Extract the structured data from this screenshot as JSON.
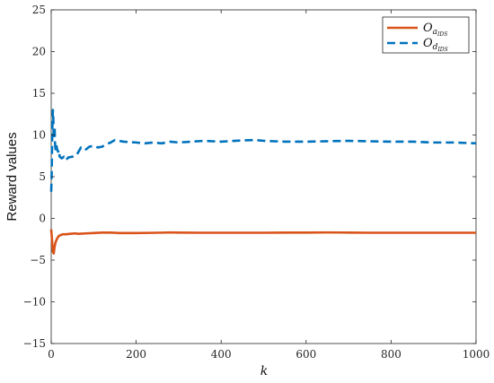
{
  "chart_data": {
    "type": "line",
    "title": "",
    "xlabel": "k",
    "ylabel": "Reward values",
    "xlim": [
      0,
      1000
    ],
    "ylim": [
      -15,
      25
    ],
    "xticks": [
      0,
      200,
      400,
      600,
      800,
      1000
    ],
    "yticks": [
      -15,
      -10,
      -5,
      0,
      5,
      10,
      15,
      20,
      25
    ],
    "ytick_labels": [
      "−15",
      "−10",
      "−5",
      "0",
      "5",
      "10",
      "15",
      "20",
      "25"
    ],
    "grid": false,
    "legend_position": "top-right",
    "series": [
      {
        "name_main": "O",
        "name_sub": "a",
        "name_subsub": "IDS",
        "color": "#d95319",
        "style": "solid",
        "x": [
          0,
          2,
          4,
          6,
          8,
          10,
          14,
          18,
          22,
          28,
          35,
          45,
          55,
          65,
          80,
          100,
          120,
          140,
          160,
          200,
          250,
          280,
          300,
          350,
          400,
          450,
          500,
          550,
          600,
          650,
          700,
          750,
          800,
          850,
          900,
          950,
          1000
        ],
        "values": [
          -1.3,
          -2.6,
          -4.0,
          -4.2,
          -3.4,
          -2.9,
          -2.4,
          -2.1,
          -2.0,
          -1.9,
          -1.9,
          -1.85,
          -1.8,
          -1.85,
          -1.8,
          -1.75,
          -1.7,
          -1.7,
          -1.75,
          -1.75,
          -1.72,
          -1.68,
          -1.7,
          -1.72,
          -1.72,
          -1.72,
          -1.72,
          -1.7,
          -1.7,
          -1.68,
          -1.7,
          -1.72,
          -1.72,
          -1.72,
          -1.72,
          -1.72,
          -1.72
        ]
      },
      {
        "name_main": "O",
        "name_sub": "d",
        "name_subsub": "IDS",
        "color": "#0072bd",
        "style": "dashed",
        "x": [
          0,
          1,
          2,
          3,
          4,
          5,
          6,
          7,
          8,
          9,
          10,
          12,
          14,
          16,
          18,
          20,
          25,
          30,
          35,
          40,
          50,
          60,
          70,
          80,
          90,
          100,
          110,
          120,
          130,
          140,
          150,
          170,
          200,
          220,
          240,
          260,
          280,
          300,
          330,
          360,
          400,
          450,
          480,
          500,
          550,
          600,
          650,
          700,
          750,
          800,
          850,
          900,
          950,
          1000
        ],
        "values": [
          3.2,
          5.0,
          8.5,
          11.5,
          13.0,
          12.0,
          9.5,
          10.5,
          11.0,
          9.0,
          8.3,
          8.8,
          8.3,
          8.0,
          8.2,
          7.4,
          7.2,
          7.4,
          7.0,
          7.3,
          7.4,
          7.6,
          8.5,
          8.2,
          8.6,
          8.7,
          8.5,
          8.6,
          8.9,
          9.1,
          9.4,
          9.2,
          9.1,
          9.0,
          9.1,
          9.0,
          9.2,
          9.1,
          9.2,
          9.3,
          9.2,
          9.35,
          9.4,
          9.3,
          9.2,
          9.2,
          9.25,
          9.3,
          9.25,
          9.2,
          9.2,
          9.1,
          9.1,
          9.0
        ]
      }
    ]
  }
}
